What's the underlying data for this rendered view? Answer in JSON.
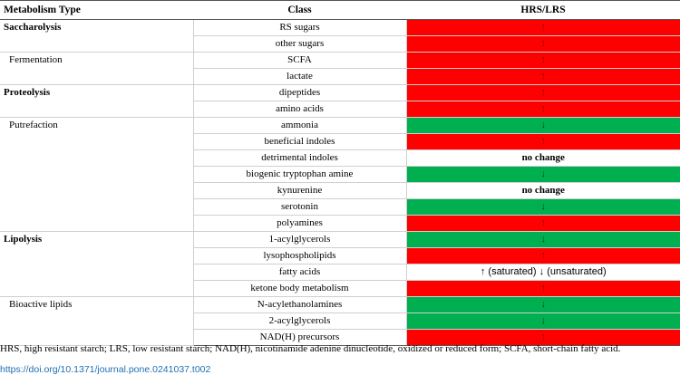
{
  "table": {
    "headers": [
      "Metabolism Type",
      "Class",
      "HRS/LRS"
    ],
    "groups": [
      {
        "type": "Saccharolysis",
        "bold": true,
        "rows": [
          {
            "cls": "RS sugars",
            "result": "↑",
            "color": "#ff0000"
          },
          {
            "cls": "other sugars",
            "result": "↑",
            "color": "#ff0000"
          }
        ]
      },
      {
        "type": "Fermentation",
        "bold": false,
        "rows": [
          {
            "cls": "SCFA",
            "result": "↑",
            "color": "#ff0000"
          },
          {
            "cls": "lactate",
            "result": "↑",
            "color": "#ff0000"
          }
        ]
      },
      {
        "type": "Proteolysis",
        "bold": true,
        "rows": [
          {
            "cls": "dipeptides",
            "result": "↑",
            "color": "#ff0000"
          },
          {
            "cls": "amino acids",
            "result": "↑",
            "color": "#ff0000"
          }
        ]
      },
      {
        "type": "Putrefaction",
        "bold": false,
        "rows": [
          {
            "cls": "ammonia",
            "result": "↓",
            "color": "#00b050"
          },
          {
            "cls": "beneficial indoles",
            "result": "↑",
            "color": "#ff0000"
          },
          {
            "cls": "detrimental indoles",
            "result": "no change",
            "color": "#ffffff"
          },
          {
            "cls": "biogenic tryptophan amine",
            "result": "↓",
            "color": "#00b050"
          },
          {
            "cls": "kynurenine",
            "result": "no change",
            "color": "#ffffff"
          },
          {
            "cls": "serotonin",
            "result": "↓",
            "color": "#00b050"
          },
          {
            "cls": "polyamines",
            "result": "↑",
            "color": "#ff0000"
          }
        ]
      },
      {
        "type": "Lipolysis",
        "bold": true,
        "rows": [
          {
            "cls": "1-acylglycerols",
            "result": "↓",
            "color": "#00b050"
          },
          {
            "cls": "lysophospholipids",
            "result": "↑",
            "color": "#ff0000"
          },
          {
            "cls": "fatty acids",
            "result": "↑ (saturated) ↓ (unsaturated)",
            "color": "#ffffff"
          },
          {
            "cls": "ketone body metabolism",
            "result": "↑",
            "color": "#ff0000"
          }
        ]
      },
      {
        "type": "Bioactive lipids",
        "bold": false,
        "rows": [
          {
            "cls": "N-acylethanolamines",
            "result": "↓",
            "color": "#00b050"
          },
          {
            "cls": "2-acylglycerols",
            "result": "↓",
            "color": "#00b050"
          },
          {
            "cls": "NAD(H) precursors",
            "result": "↑",
            "color": "#ff0000"
          }
        ]
      }
    ]
  },
  "footnote": "HRS, high resistant starch; LRS, low resistant starch; NAD(H), nicotinamide adenine dinucleotide, oxidized or reduced form; SCFA, short-chain fatty acid.",
  "doi": "https://doi.org/10.1371/journal.pone.0241037.t002"
}
